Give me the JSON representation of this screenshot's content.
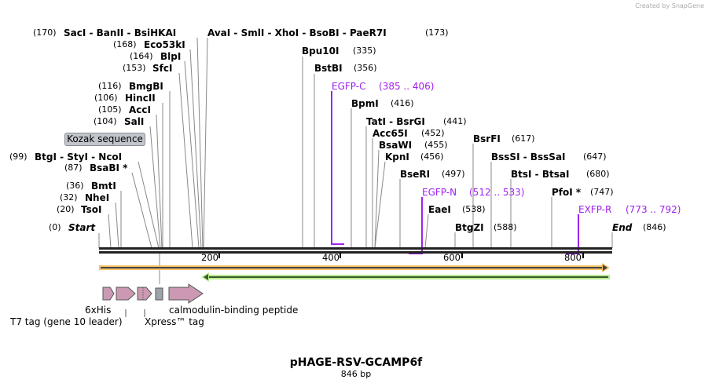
{
  "credit": "Created by SnapGene",
  "title": "pHAGE-RSV-GCAMP6f",
  "length": "846 bp",
  "sites": {
    "sacI_pos": "(170)",
    "sacI": "SacI  - BanII  - BsiHKAI",
    "avaI": "AvaI  - SmlI  - XhoI  - BsoBI  - PaeR7I",
    "avaI_pos": "(173)",
    "eco_pos": "(168)",
    "eco": "Eco53kI",
    "blp_pos": "(164)",
    "blp": "BlpI",
    "sfc_pos": "(153)",
    "sfc": "SfcI",
    "bmg_pos": "(116)",
    "bmg": "BmgBI",
    "hinc_pos": "(106)",
    "hinc": "HincII",
    "acc_pos": "(105)",
    "acc": "AccI",
    "sal_pos": "(104)",
    "sal": "SalI",
    "btg_pos": "(99)",
    "btg": "BtgI  - StyI  - NcoI",
    "bsab_pos": "(87)",
    "bsab": "BsaBI *",
    "bmt_pos": "(36)",
    "bmt": "BmtI",
    "nhe_pos": "(32)",
    "nhe": "NheI",
    "tso_pos": "(20)",
    "tso": "TsoI",
    "start_pos": "(0)",
    "start": "Start",
    "bpu": "Bpu10I",
    "bpu_pos": "(335)",
    "bstb": "BstBI",
    "bstb_pos": "(356)",
    "bpm": "BpmI",
    "bpm_pos": "(416)",
    "tat": "TatI  - BsrGI",
    "tat_pos": "(441)",
    "acc65": "Acc65I",
    "acc65_pos": "(452)",
    "bsaw": "BsaWI",
    "bsaw_pos": "(455)",
    "kpn": "KpnI",
    "kpn_pos": "(456)",
    "bser": "BseRI",
    "bser_pos": "(497)",
    "eae": "EaeI",
    "eae_pos": "(538)",
    "btgz": "BtgZI",
    "btgz_pos": "(588)",
    "bsrf": "BsrFI",
    "bsrf_pos": "(617)",
    "bsss": "BssSI  - BssSaI",
    "bsss_pos": "(647)",
    "bts": "BtsI  - BtsaI",
    "bts_pos": "(680)",
    "pfo": "PfoI *",
    "pfo_pos": "(747)",
    "end": "End",
    "end_pos": "(846)"
  },
  "primers": [
    {
      "name": "EGFP-C",
      "range": "(385 .. 406)"
    },
    {
      "name": "EGFP-N",
      "range": "(512 .. 533)"
    },
    {
      "name": "EXFP-R",
      "range": "(773 .. 792)"
    }
  ],
  "ticks": [
    "200",
    "400",
    "600",
    "800"
  ],
  "features": {
    "kozak": "Kozak sequence",
    "his": "6xHis",
    "t7": "T7 tag (gene 10 leader)",
    "xpress": "Xpress™ tag",
    "cbp": "calmodulin-binding peptide"
  },
  "colors": {
    "primer": "#a020f0",
    "orange": "#f5c36b",
    "green": "#b8ec8c",
    "feature": "#cc99b3"
  }
}
